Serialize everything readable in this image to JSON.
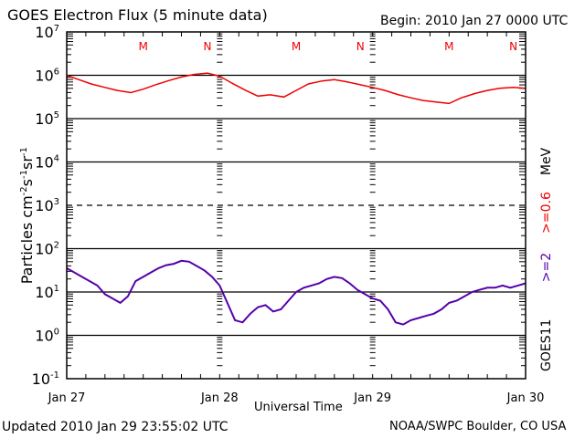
{
  "chart_data": {
    "type": "line",
    "title": "GOES Electron Flux (5 minute data)",
    "begin": "Begin: 2010 Jan 27 0000 UTC",
    "xlabel": "Universal Time",
    "ylabel": "Particles cm",
    "ylabel_units": [
      "-2",
      "s",
      "-1",
      "sr",
      "-1"
    ],
    "yscale": "log",
    "ylim_exponent": [
      -1,
      7
    ],
    "y_tick_exponents": [
      7,
      6,
      5,
      4,
      3,
      2,
      1,
      0,
      -1
    ],
    "dashed_gridline_exponent": 3,
    "xlim_days": [
      0,
      3
    ],
    "x_tick_labels": [
      "Jan 27",
      "Jan 28",
      "Jan 29",
      "Jan 30"
    ],
    "top_markers": [
      {
        "label": "M",
        "day": 0.5
      },
      {
        "label": "N",
        "day": 0.92
      },
      {
        "label": "M",
        "day": 1.5
      },
      {
        "label": "N",
        "day": 1.92
      },
      {
        "label": "M",
        "day": 2.5
      },
      {
        "label": "N",
        "day": 2.92
      }
    ],
    "right_labels": {
      "satellite": "GOES11",
      "series_2": ">=2",
      "series_06": ">=0.6",
      "unit": "MeV"
    },
    "series": [
      {
        "name": ">=0.6 MeV",
        "color": "#ee0000",
        "x_days": [
          0,
          0.08,
          0.16,
          0.25,
          0.33,
          0.42,
          0.5,
          0.58,
          0.67,
          0.75,
          0.83,
          0.92,
          1.0,
          1.08,
          1.17,
          1.25,
          1.33,
          1.42,
          1.5,
          1.58,
          1.67,
          1.75,
          1.83,
          1.92,
          2.0,
          2.08,
          2.17,
          2.25,
          2.33,
          2.42,
          2.5,
          2.58,
          2.67,
          2.75,
          2.83,
          2.92,
          3.0
        ],
        "log10_values": [
          6.0,
          5.9,
          5.8,
          5.72,
          5.65,
          5.6,
          5.68,
          5.78,
          5.88,
          5.96,
          6.02,
          6.05,
          5.98,
          5.82,
          5.65,
          5.52,
          5.55,
          5.5,
          5.65,
          5.8,
          5.87,
          5.9,
          5.85,
          5.78,
          5.72,
          5.65,
          5.55,
          5.48,
          5.42,
          5.38,
          5.35,
          5.48,
          5.58,
          5.65,
          5.7,
          5.72,
          5.7
        ]
      },
      {
        "name": ">=2 MeV",
        "color": "#5500aa",
        "x_days": [
          0,
          0.05,
          0.1,
          0.15,
          0.2,
          0.25,
          0.3,
          0.35,
          0.4,
          0.45,
          0.5,
          0.55,
          0.6,
          0.65,
          0.7,
          0.75,
          0.8,
          0.85,
          0.9,
          0.95,
          1.0,
          1.05,
          1.1,
          1.15,
          1.2,
          1.25,
          1.3,
          1.35,
          1.4,
          1.45,
          1.5,
          1.55,
          1.6,
          1.65,
          1.7,
          1.75,
          1.8,
          1.85,
          1.9,
          1.95,
          2.0,
          2.05,
          2.1,
          2.15,
          2.2,
          2.25,
          2.3,
          2.35,
          2.4,
          2.45,
          2.5,
          2.55,
          2.6,
          2.65,
          2.7,
          2.75,
          2.8,
          2.85,
          2.9,
          2.95,
          3.0
        ],
        "log10_values": [
          1.55,
          1.45,
          1.35,
          1.25,
          1.15,
          0.95,
          0.85,
          0.75,
          0.9,
          1.25,
          1.35,
          1.45,
          1.55,
          1.62,
          1.65,
          1.72,
          1.7,
          1.6,
          1.5,
          1.35,
          1.15,
          0.75,
          0.35,
          0.3,
          0.5,
          0.65,
          0.7,
          0.55,
          0.6,
          0.8,
          1.0,
          1.1,
          1.15,
          1.2,
          1.3,
          1.35,
          1.32,
          1.2,
          1.05,
          0.95,
          0.85,
          0.8,
          0.6,
          0.3,
          0.25,
          0.35,
          0.4,
          0.45,
          0.5,
          0.6,
          0.75,
          0.8,
          0.9,
          1.0,
          1.05,
          1.1,
          1.1,
          1.15,
          1.1,
          1.15,
          1.2
        ]
      }
    ]
  },
  "footer": {
    "updated": "Updated 2010 Jan 29 23:55:02 UTC",
    "source": "NOAA/SWPC Boulder, CO USA"
  }
}
